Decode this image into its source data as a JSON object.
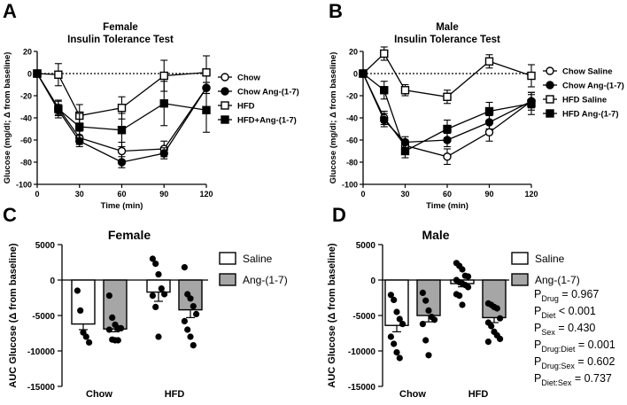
{
  "chart_data": [
    {
      "panel": "A",
      "type": "line",
      "title": [
        "Female",
        "Insulin Tolerance Test"
      ],
      "xlabel": "Time (min)",
      "ylabel": "Glucose (mg/dl; Δ from baseline)",
      "x": [
        0,
        15,
        30,
        60,
        90,
        120
      ],
      "xticks": [
        "0",
        "30",
        "60",
        "90",
        "120"
      ],
      "xlim": [
        0,
        120
      ],
      "ylim": [
        -100,
        20
      ],
      "yticks": [
        "20",
        "0",
        "-20",
        "-40",
        "-60",
        "-80",
        "-100"
      ],
      "baseline": 0,
      "series": [
        {
          "name": "Chow",
          "marker": "open-circle",
          "values": [
            0,
            -31,
            -58,
            -70,
            -68,
            -13
          ],
          "errors": [
            0,
            6,
            6,
            8,
            7,
            5
          ]
        },
        {
          "name": "Chow Ang-(1-7)",
          "marker": "filled-circle",
          "values": [
            0,
            -33,
            -61,
            -80,
            -72,
            -13
          ],
          "errors": [
            0,
            5,
            5,
            5,
            5,
            5
          ]
        },
        {
          "name": "HFD",
          "marker": "open-square",
          "values": [
            0,
            -1,
            -38,
            -31,
            -2,
            1
          ],
          "errors": [
            0,
            10,
            10,
            10,
            14,
            15
          ]
        },
        {
          "name": "HFD+Ang-(1-7)",
          "marker": "filled-square",
          "values": [
            0,
            -32,
            -48,
            -51,
            -27,
            -33
          ],
          "errors": [
            0,
            8,
            12,
            15,
            20,
            20
          ]
        }
      ]
    },
    {
      "panel": "B",
      "type": "line",
      "title": [
        "Male",
        "Insulin Tolerance Test"
      ],
      "xlabel": "Time (min)",
      "ylabel": "Glucose (mg/dl; Δ from baseline)",
      "x": [
        0,
        15,
        30,
        60,
        90,
        120
      ],
      "xticks": [
        "0",
        "30",
        "60",
        "90",
        "120"
      ],
      "xlim": [
        0,
        120
      ],
      "ylim": [
        -100,
        20
      ],
      "yticks": [
        "20",
        "0",
        "-20",
        "-40",
        "-60",
        "-80",
        "-100"
      ],
      "baseline": 0,
      "series": [
        {
          "name": "Chow Saline",
          "marker": "open-circle",
          "values": [
            0,
            -40,
            -65,
            -75,
            -53,
            -25
          ],
          "errors": [
            0,
            6,
            5,
            7,
            8,
            8
          ]
        },
        {
          "name": "Chow Ang-(1-7)",
          "marker": "filled-circle",
          "values": [
            0,
            -42,
            -62,
            -60,
            -44,
            -25
          ],
          "errors": [
            0,
            6,
            5,
            6,
            6,
            6
          ]
        },
        {
          "name": "HFD Saline",
          "marker": "open-square",
          "values": [
            0,
            18,
            -15,
            -21,
            11,
            -2
          ],
          "errors": [
            0,
            6,
            5,
            6,
            6,
            10
          ]
        },
        {
          "name": "HFD Ang-(1-7)",
          "marker": "filled-square",
          "values": [
            0,
            -15,
            -70,
            -50,
            -34,
            -27
          ],
          "errors": [
            0,
            8,
            6,
            8,
            8,
            10
          ]
        }
      ]
    },
    {
      "panel": "C",
      "type": "bar",
      "title": "Female",
      "ylabel": "AUC Glucose (Δ from baseline)",
      "categories": [
        "Chow",
        "HFD"
      ],
      "ylim": [
        -15000,
        5000
      ],
      "yticks": [
        "5000",
        "0",
        "-5000",
        "-10000",
        "-15000"
      ],
      "legend": [
        "Saline",
        "Ang-(1-7)"
      ],
      "series": [
        {
          "name": "Saline",
          "fill": "open",
          "values": [
            -6200,
            -1700
          ],
          "errors": [
            800,
            1300
          ],
          "points": [
            [
              -1500,
              -4300,
              -7400,
              -8000,
              -8800
            ],
            [
              3000,
              2300,
              800,
              -1200,
              -2000,
              -2200,
              -3800,
              -8000
            ]
          ]
        },
        {
          "name": "Ang-(1-7)",
          "fill": "grey",
          "values": [
            -6900,
            -4200
          ],
          "errors": [
            400,
            1100
          ],
          "points": [
            [
              -2200,
              -5300,
              -6300,
              -6800,
              -6800,
              -7000,
              -8400,
              -8500,
              -8500
            ],
            [
              1800,
              -2000,
              -2600,
              -3700,
              -4800,
              -5800,
              -7000,
              -8000,
              -9200
            ]
          ]
        }
      ]
    },
    {
      "panel": "D",
      "type": "bar",
      "title": "Male",
      "ylabel": "AUC Glucose (Δ from baseline)",
      "categories": [
        "Chow",
        "HFD"
      ],
      "ylim": [
        -15000,
        5000
      ],
      "yticks": [
        "5000",
        "0",
        "-5000",
        "-10000",
        "-15000"
      ],
      "legend": [
        "Saline",
        "Ang-(1-7)"
      ],
      "series": [
        {
          "name": "Saline",
          "fill": "open",
          "values": [
            -6400,
            -500
          ],
          "errors": [
            900,
            450
          ],
          "points": [
            [
              -2100,
              -2800,
              -4500,
              -5500,
              -6200,
              -8000,
              -9000,
              -10200,
              -11000
            ],
            [
              2400,
              2000,
              1500,
              600,
              500,
              0,
              -300,
              -500,
              -700,
              -1000,
              -2000,
              -2200,
              -3500
            ]
          ]
        },
        {
          "name": "Ang-(1-7)",
          "fill": "grey",
          "values": [
            -5000,
            -5300
          ],
          "errors": [
            900,
            700
          ],
          "points": [
            [
              -1800,
              -2900,
              -4300,
              -5200,
              -5600,
              -6200,
              -8500,
              -10600
            ],
            [
              -3300,
              -3500,
              -3800,
              -4000,
              -5400,
              -6000,
              -6500,
              -7300,
              -7800,
              -8300,
              -8700
            ]
          ]
        }
      ],
      "stats": [
        {
          "label": "P",
          "sub": "Drug",
          "value": "= 0.967"
        },
        {
          "label": "P",
          "sub": "Diet",
          "value": "< 0.001"
        },
        {
          "label": "P",
          "sub": "Sex",
          "value": "= 0.430"
        },
        {
          "label": "P",
          "sub": "Drug:Diet",
          "value": "= 0.001"
        },
        {
          "label": "P",
          "sub": "Drug:Sex",
          "value": "= 0.602"
        },
        {
          "label": "P",
          "sub": "Diet:Sex",
          "value": "= 0.737"
        }
      ]
    }
  ],
  "panel_letters": [
    "A",
    "B",
    "C",
    "D"
  ],
  "colors": {
    "ink": "#000000",
    "bar_grey": "#a6a6a6",
    "bar_open": "#ffffff"
  }
}
